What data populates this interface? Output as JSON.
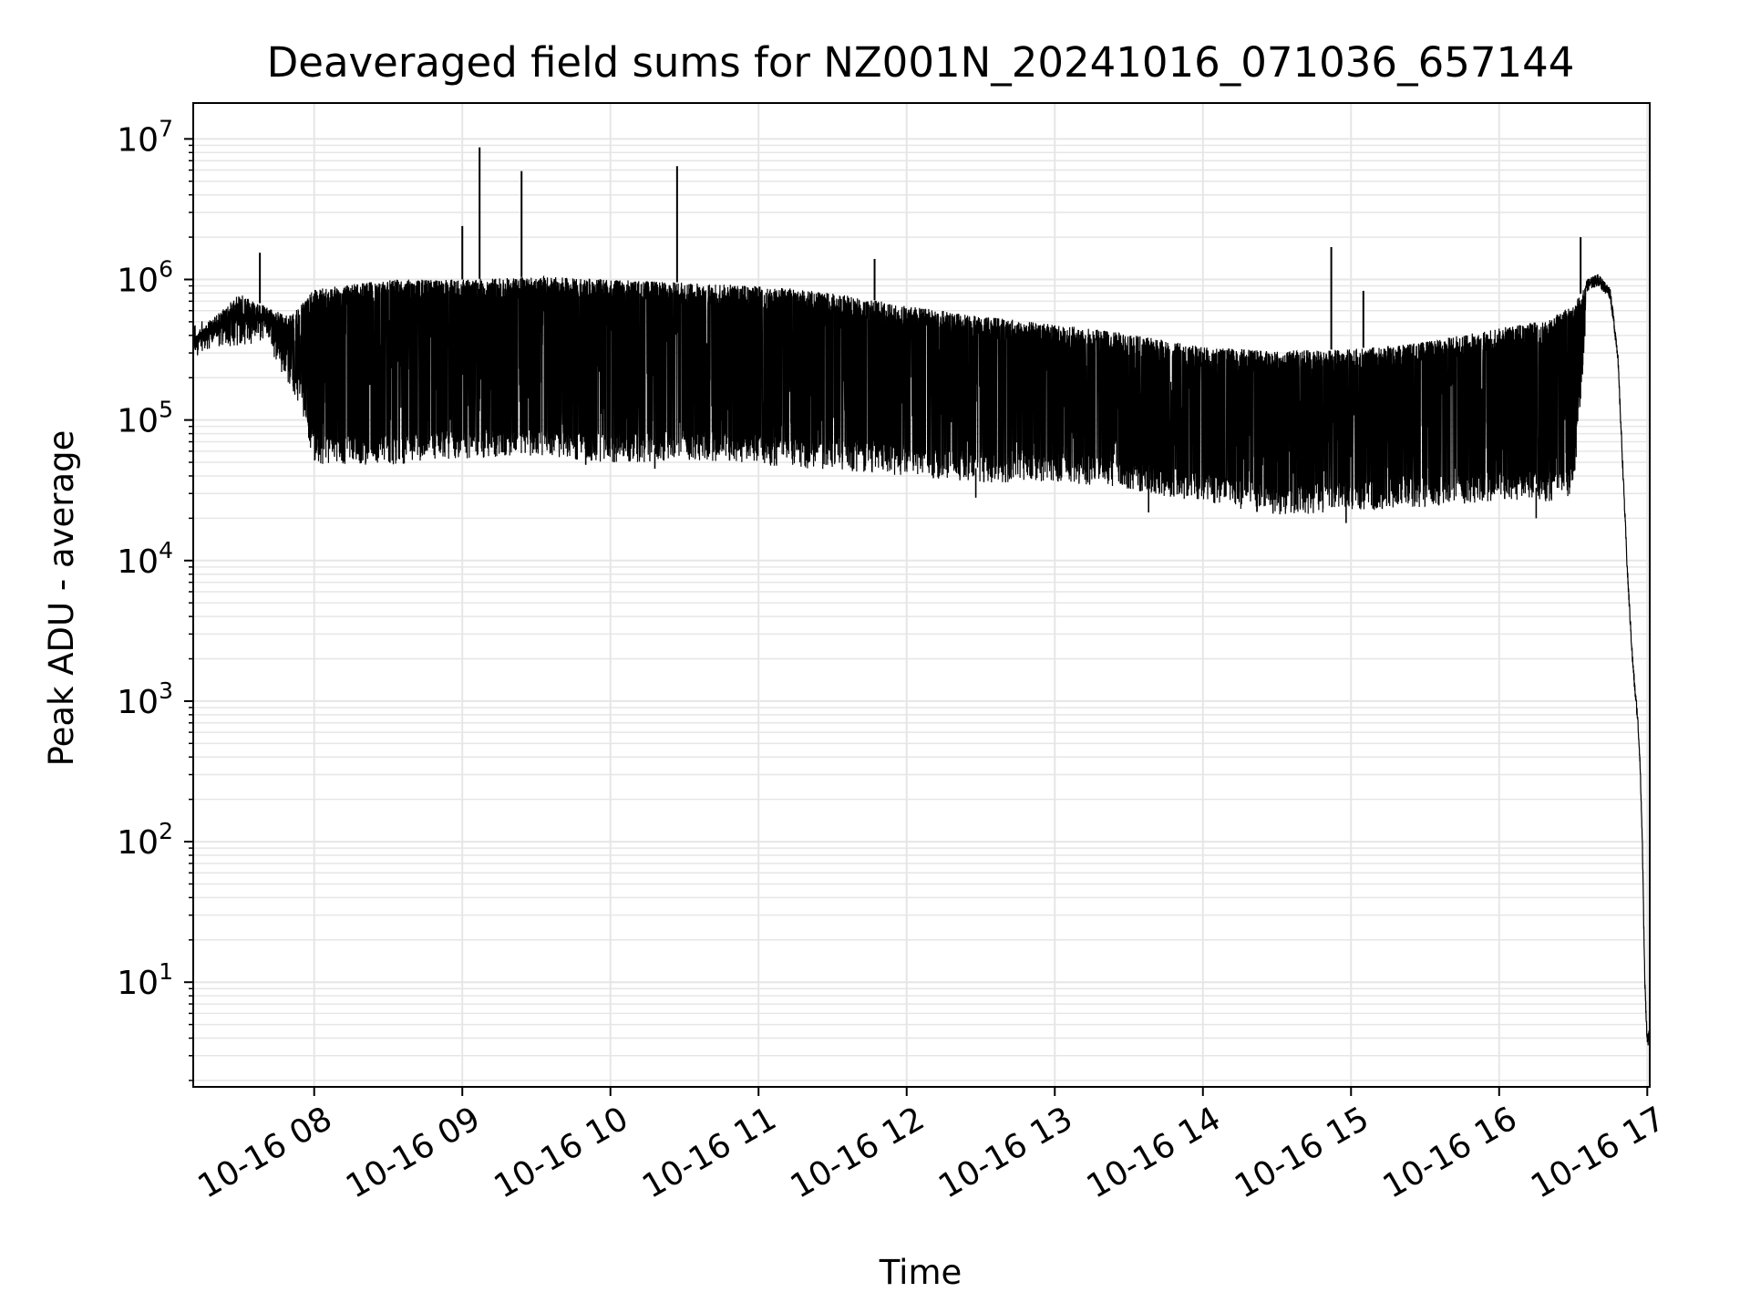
{
  "chart_data": {
    "type": "line",
    "title": "Deaveraged field sums for NZ001N_20241016_071036_657144",
    "xlabel": "Time",
    "ylabel": "Peak ADU - average",
    "yscale": "log",
    "grid": true,
    "legend": "none",
    "line_color": "#000000",
    "grid_color": "#e6e6e6",
    "xlim": [
      "2024-10-16 07:11",
      "2024-10-16 17:01"
    ],
    "ylim": [
      1.8,
      18000000
    ],
    "x_ticks": [
      "2024-10-16 08:00",
      "2024-10-16 09:00",
      "2024-10-16 10:00",
      "2024-10-16 11:00",
      "2024-10-16 12:00",
      "2024-10-16 13:00",
      "2024-10-16 14:00",
      "2024-10-16 15:00",
      "2024-10-16 16:00",
      "2024-10-16 17:00"
    ],
    "x_tick_labels": [
      "10-16 08",
      "10-16 09",
      "10-16 10",
      "10-16 11",
      "10-16 12",
      "10-16 13",
      "10-16 14",
      "10-16 15",
      "10-16 16",
      "10-16 17"
    ],
    "y_ticks": [
      10,
      100,
      1000,
      10000,
      100000,
      1000000,
      10000000
    ],
    "y_tick_labels": [
      {
        "base": "10",
        "exp": "1"
      },
      {
        "base": "10",
        "exp": "2"
      },
      {
        "base": "10",
        "exp": "3"
      },
      {
        "base": "10",
        "exp": "4"
      },
      {
        "base": "10",
        "exp": "5"
      },
      {
        "base": "10",
        "exp": "6"
      },
      {
        "base": "10",
        "exp": "7"
      }
    ],
    "series": [
      {
        "upper_envelope": {
          "x": [
            "2024-10-16 07:11",
            "2024-10-16 07:20",
            "2024-10-16 07:30",
            "2024-10-16 07:40",
            "2024-10-16 07:50",
            "2024-10-16 08:00",
            "2024-10-16 08:30",
            "2024-10-16 09:00",
            "2024-10-16 09:30",
            "2024-10-16 10:00",
            "2024-10-16 10:30",
            "2024-10-16 11:00",
            "2024-10-16 11:30",
            "2024-10-16 12:00",
            "2024-10-16 12:30",
            "2024-10-16 13:00",
            "2024-10-16 13:30",
            "2024-10-16 14:00",
            "2024-10-16 14:30",
            "2024-10-16 15:00",
            "2024-10-16 15:30",
            "2024-10-16 16:00",
            "2024-10-16 16:20",
            "2024-10-16 16:30",
            "2024-10-16 16:35",
            "2024-10-16 16:40",
            "2024-10-16 16:45",
            "2024-10-16 16:48",
            "2024-10-16 16:50",
            "2024-10-16 16:52",
            "2024-10-16 16:54",
            "2024-10-16 16:55",
            "2024-10-16 16:56",
            "2024-10-16 16:57",
            "2024-10-16 16:58",
            "2024-10-16 16:59",
            "2024-10-16 17:00",
            "2024-10-16 17:00:30",
            "2024-10-16 17:01"
          ],
          "y": [
            380000,
            550000,
            800000,
            650000,
            550000,
            850000,
            1000000,
            1000000,
            1050000,
            1000000,
            950000,
            900000,
            800000,
            650000,
            550000,
            480000,
            410000,
            330000,
            310000,
            320000,
            360000,
            450000,
            520000,
            650000,
            900000,
            1000000,
            800000,
            300000,
            50000,
            8000,
            2000,
            1200,
            800,
            400,
            100,
            10,
            3.8,
            4.0,
            4.3
          ]
        },
        "lower_envelope": {
          "x": [
            "2024-10-16 07:11",
            "2024-10-16 07:40",
            "2024-10-16 07:55",
            "2024-10-16 08:00",
            "2024-10-16 08:30",
            "2024-10-16 09:00",
            "2024-10-16 09:30",
            "2024-10-16 10:00",
            "2024-10-16 10:30",
            "2024-10-16 11:00",
            "2024-10-16 11:30",
            "2024-10-16 12:00",
            "2024-10-16 12:30",
            "2024-10-16 13:00",
            "2024-10-16 13:30",
            "2024-10-16 14:00",
            "2024-10-16 14:30",
            "2024-10-16 15:00",
            "2024-10-16 15:30",
            "2024-10-16 16:00",
            "2024-10-16 16:20",
            "2024-10-16 16:30",
            "2024-10-16 16:35"
          ],
          "y": [
            380000,
            450000,
            150000,
            60000,
            60000,
            65000,
            70000,
            60000,
            65000,
            60000,
            55000,
            50000,
            45000,
            45000,
            40000,
            32000,
            26000,
            28000,
            30000,
            33000,
            33000,
            35000,
            500000
          ]
        },
        "spikes": [
          {
            "x": "2024-10-16 09:00",
            "y": 2400000
          },
          {
            "x": "2024-10-16 09:07",
            "y": 8700000
          },
          {
            "x": "2024-10-16 09:24",
            "y": 5900000
          },
          {
            "x": "2024-10-16 10:27",
            "y": 6400000
          },
          {
            "x": "2024-10-16 14:52",
            "y": 1700000
          },
          {
            "x": "2024-10-16 15:05",
            "y": 830000
          },
          {
            "x": "2024-10-16 16:33",
            "y": 2000000
          },
          {
            "x": "2024-10-16 11:47",
            "y": 1400000
          },
          {
            "x": "2024-10-16 07:38",
            "y": 1550000
          }
        ],
        "dips": [
          {
            "x": "2024-10-16 13:38",
            "y": 22000
          },
          {
            "x": "2024-10-16 14:58",
            "y": 18500
          },
          {
            "x": "2024-10-16 16:15",
            "y": 20000
          },
          {
            "x": "2024-10-16 12:28",
            "y": 28000
          },
          {
            "x": "2024-10-16 10:18",
            "y": 45000
          },
          {
            "x": "2024-10-16 09:50",
            "y": 48000
          }
        ]
      }
    ]
  }
}
